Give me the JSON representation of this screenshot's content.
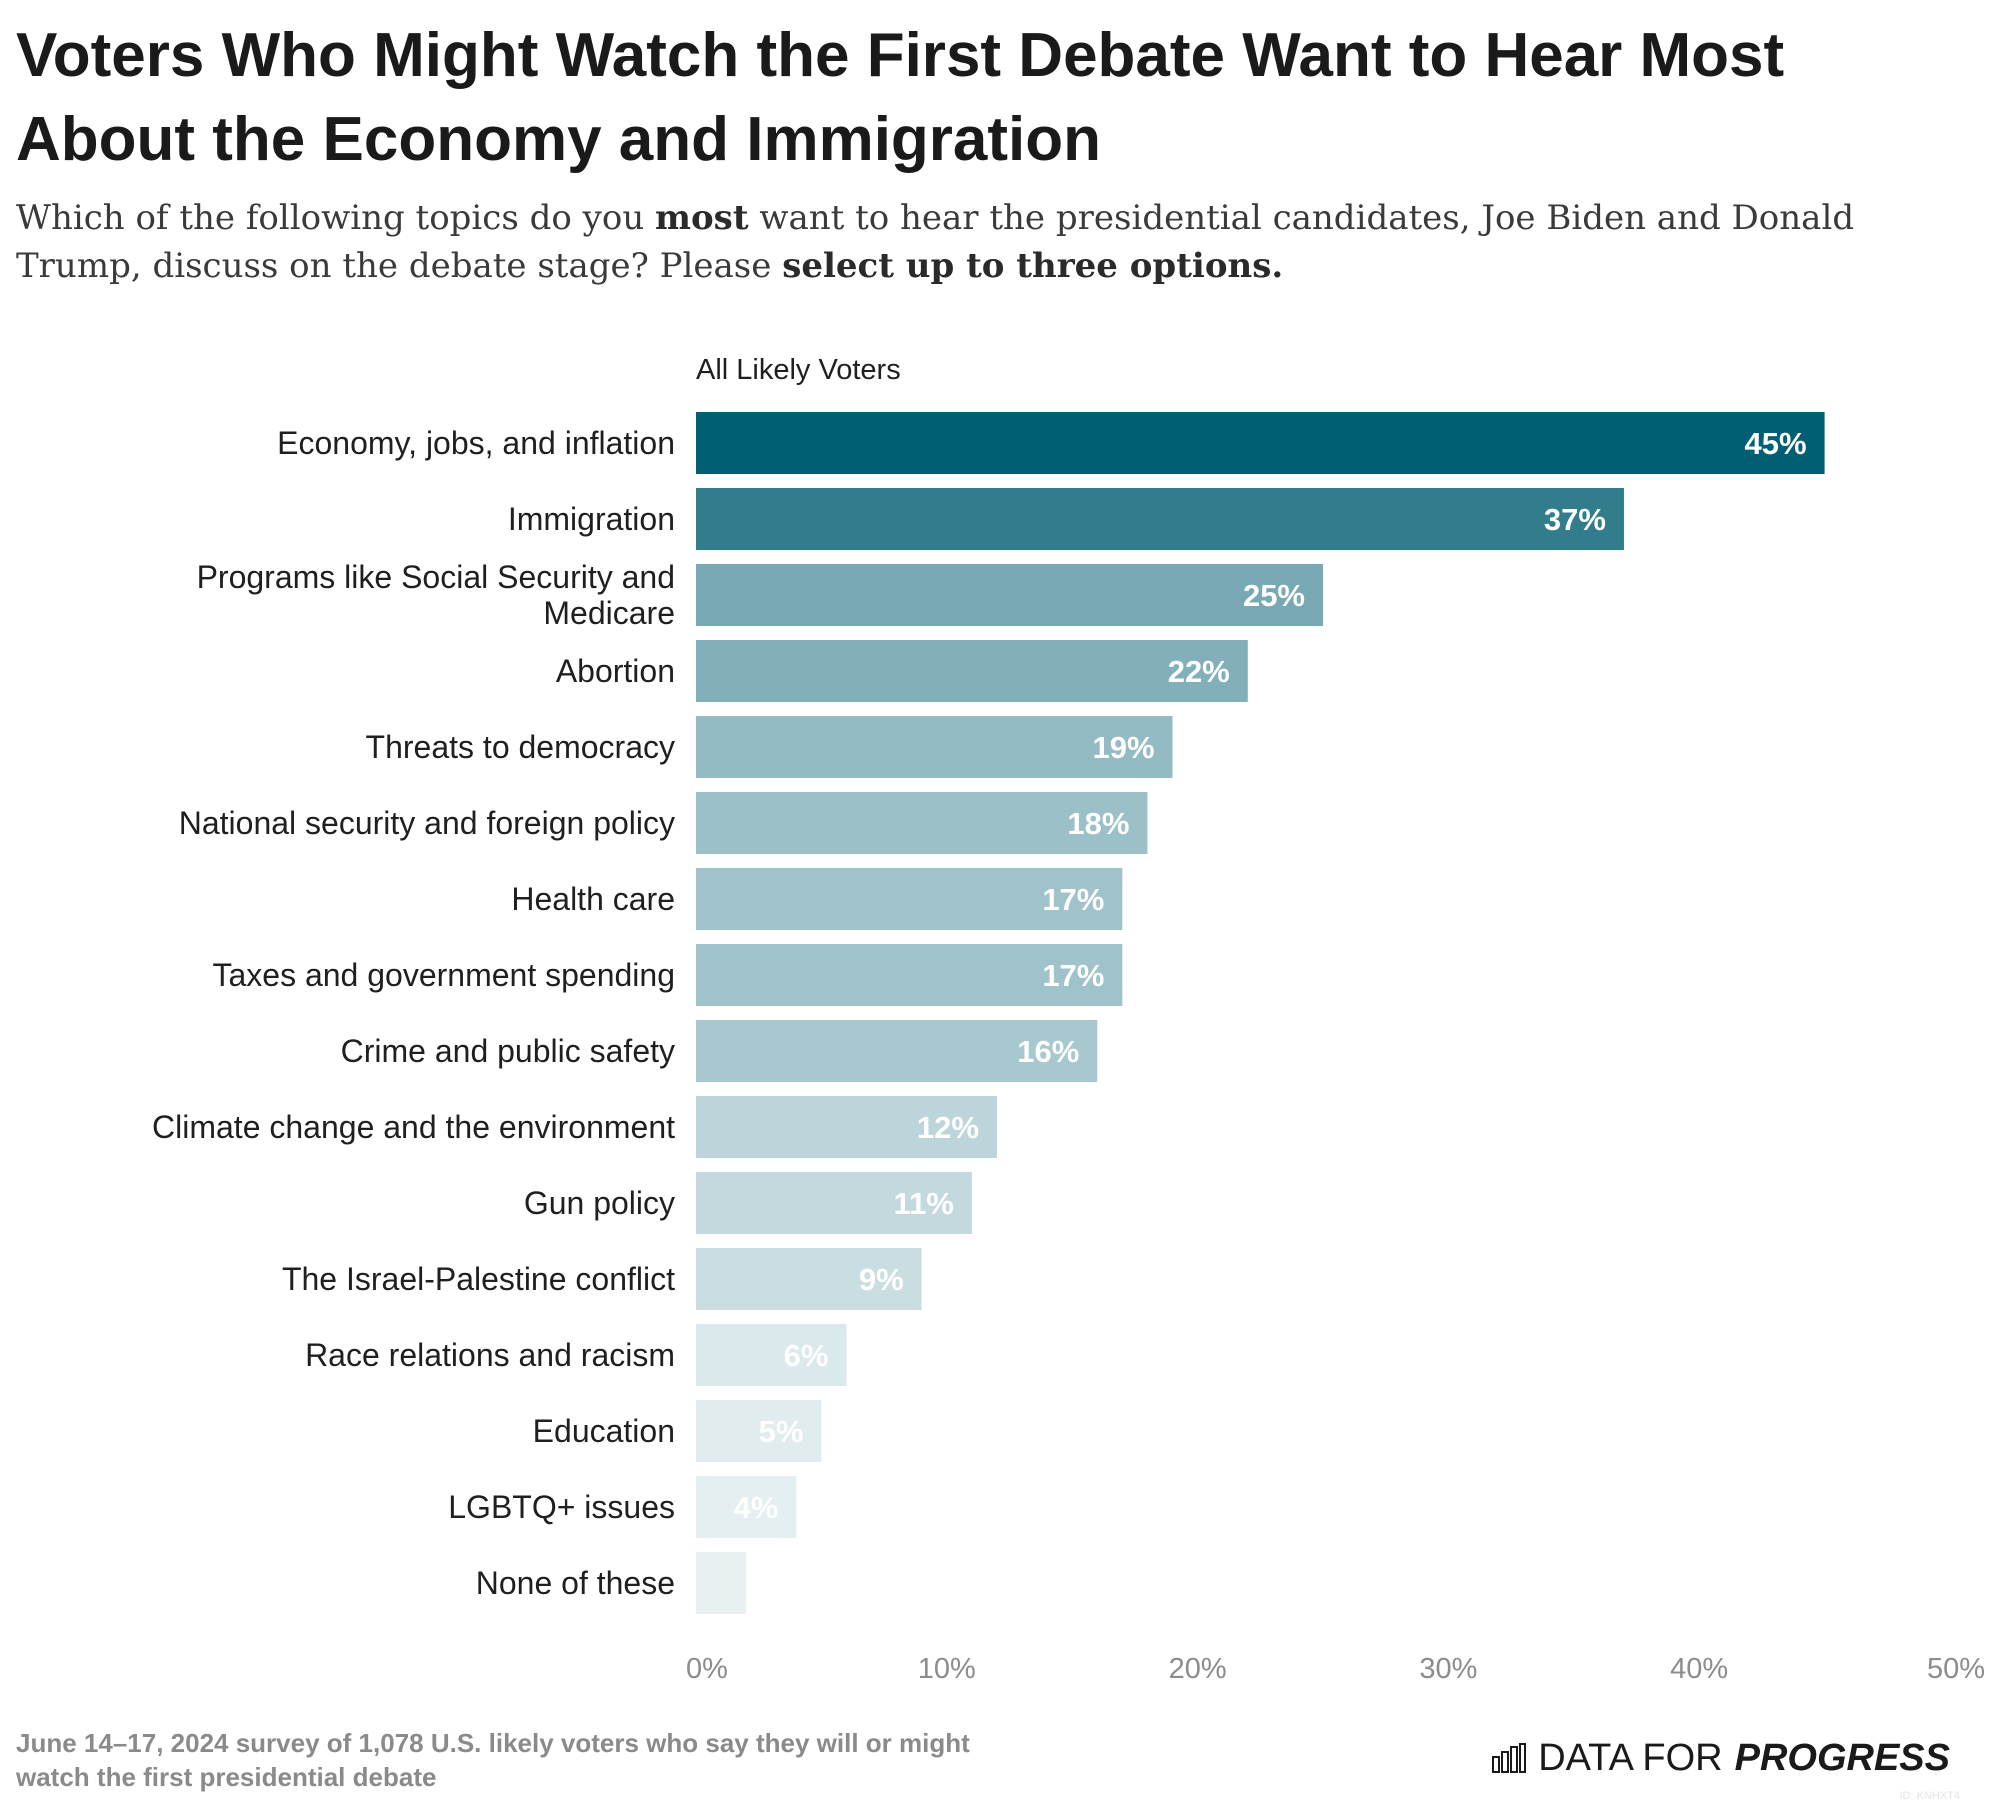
{
  "title": "Voters Who Might Watch the First Debate Want to Hear Most About the Economy and Immigration",
  "subtitle": {
    "part1": "Which of the following topics do you ",
    "bold1": "most",
    "part2": " want to hear the presidential candidates, Joe Biden and Donald Trump, discuss on the debate stage? Please ",
    "bold2": "select up to three options."
  },
  "footnote": "June 14–17, 2024 survey of 1,078 U.S. likely voters who say they will or might watch the first presidential debate",
  "logo": {
    "text_regular": "DATA FOR",
    "text_bold": "PROGRESS",
    "icon": "bar-chart-icon"
  },
  "chart_id": "ID: KNHXT4",
  "chart_data": {
    "type": "bar",
    "orientation": "horizontal",
    "group_label": "All Likely Voters",
    "categories": [
      "Economy, jobs, and inflation",
      "Immigration",
      "Programs like Social Security and Medicare",
      "Abortion",
      "Threats to democracy",
      "National security and foreign policy",
      "Health care",
      "Taxes and government spending",
      "Crime and public safety",
      "Climate change and the environment",
      "Gun policy",
      "The Israel-Palestine conflict",
      "Race relations and racism",
      "Education",
      "LGBTQ+ issues",
      "None of these"
    ],
    "values": [
      45,
      37,
      25,
      22,
      19,
      18,
      17,
      17,
      16,
      12,
      11,
      9,
      6,
      5,
      4,
      2
    ],
    "labels": [
      "45%",
      "37%",
      "25%",
      "22%",
      "19%",
      "18%",
      "17%",
      "17%",
      "16%",
      "12%",
      "11%",
      "9%",
      "6%",
      "5%",
      "4%",
      ""
    ],
    "colors": [
      "#005f73",
      "#317d8c",
      "#77a8b3",
      "#82b0ba",
      "#94bbc4",
      "#9bc0c8",
      "#a0c3cb",
      "#a0c3cb",
      "#a8c8cf",
      "#bcd5da",
      "#c3d9de",
      "#cadee2",
      "#dce9ec",
      "#e0ecee",
      "#e5eff1",
      "#e8f0f2"
    ],
    "xlim": [
      0,
      50
    ],
    "xticks": [
      0,
      10,
      20,
      30,
      40,
      50
    ],
    "xtick_labels": [
      "0%",
      "10%",
      "20%",
      "30%",
      "40%",
      "50%"
    ],
    "grid": false,
    "xlabel": "",
    "ylabel": ""
  }
}
